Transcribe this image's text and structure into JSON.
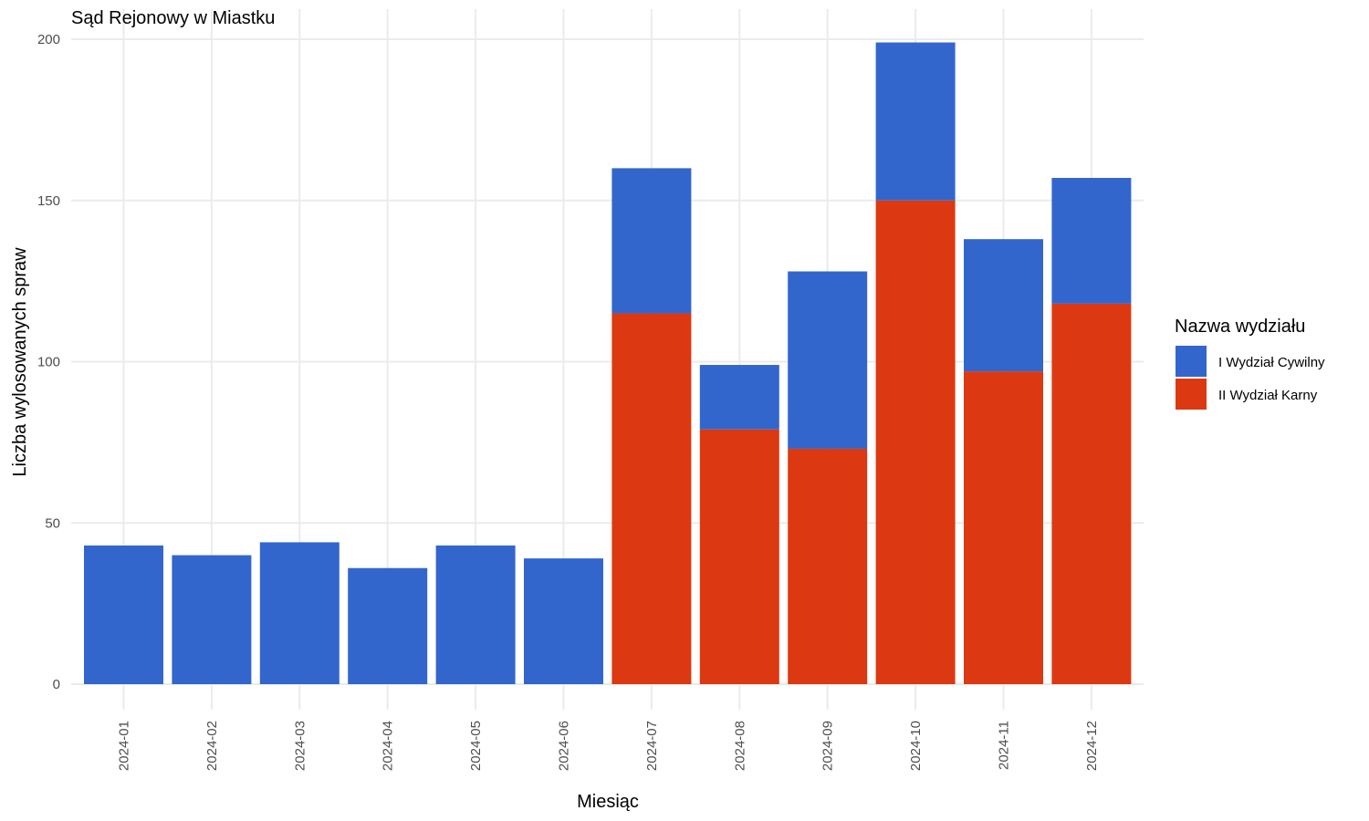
{
  "chart_data": {
    "type": "bar",
    "stacked": true,
    "title": "Sąd Rejonowy w Miastku",
    "xlabel": "Miesiąc",
    "ylabel": "Liczba wylosowanych spraw",
    "ylim": [
      0,
      200
    ],
    "yticks": [
      0,
      50,
      100,
      150,
      200
    ],
    "grid": true,
    "categories": [
      "2024-01",
      "2024-02",
      "2024-03",
      "2024-04",
      "2024-05",
      "2024-06",
      "2024-07",
      "2024-08",
      "2024-09",
      "2024-10",
      "2024-11",
      "2024-12"
    ],
    "series": [
      {
        "name": "II Wydział Karny",
        "color": "#dc3912",
        "values": [
          0,
          0,
          0,
          0,
          0,
          0,
          115,
          79,
          73,
          150,
          97,
          118
        ]
      },
      {
        "name": "I Wydział Cywilny",
        "color": "#3366cc",
        "values": [
          43,
          40,
          44,
          36,
          43,
          39,
          45,
          20,
          55,
          49,
          41,
          39
        ]
      }
    ],
    "legend": {
      "title": "Nazwa wydziału",
      "position": "right",
      "items": [
        {
          "label": "I Wydział Cywilny",
          "color": "#3366cc"
        },
        {
          "label": "II Wydział Karny",
          "color": "#dc3912"
        }
      ]
    }
  }
}
